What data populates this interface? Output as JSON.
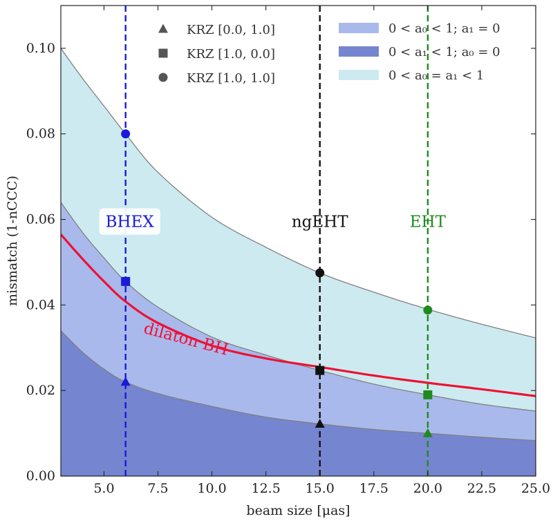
{
  "chart_data": {
    "type": "area",
    "xlabel": "beam size [μas]",
    "ylabel": "mismatch (1-nCCC)",
    "xlim": [
      3.0,
      25.0
    ],
    "ylim": [
      0.0,
      0.11
    ],
    "xticks": [
      5.0,
      7.5,
      10.0,
      12.5,
      15.0,
      17.5,
      20.0,
      22.5,
      25.0
    ],
    "xtick_labels": [
      "5.0",
      "7.5",
      "10.0",
      "12.5",
      "15.0",
      "17.5",
      "20.0",
      "22.5",
      "25.0"
    ],
    "yticks": [
      0.0,
      0.02,
      0.04,
      0.06,
      0.08,
      0.1
    ],
    "ytick_labels": [
      "0.00",
      "0.02",
      "0.04",
      "0.06",
      "0.08",
      "0.10"
    ],
    "colors": {
      "band_a0": "#a9b9ec",
      "band_a1": "#7585cf",
      "band_equal": "#cdeaf0",
      "dilaton": "#ee1133",
      "bhex": "#1a1ad8",
      "ngeht": "#111111",
      "eht": "#1f8a1f",
      "boundary": "#808080"
    },
    "bands": [
      {
        "name": "0 < a_1 < 1; a_0 = 0",
        "color_key": "band_a1",
        "lower": 0.0,
        "upper_curve": "krz_0_1"
      },
      {
        "name": "0 < a_0 < 1; a_1 = 0",
        "color_key": "band_a0",
        "lower_curve": "krz_0_1",
        "upper_curve": "krz_1_0"
      },
      {
        "name": "0 < a_0 = a_1 < 1",
        "color_key": "band_equal",
        "lower_curve": "krz_1_0",
        "upper_curve": "krz_1_1"
      }
    ],
    "curves": {
      "x": [
        3.0,
        4.0,
        5.0,
        6.0,
        7.5,
        10.0,
        12.5,
        15.0,
        17.5,
        20.0,
        22.5,
        25.0
      ],
      "krz_1_1": [
        0.1,
        0.093,
        0.0865,
        0.08,
        0.071,
        0.0605,
        0.0535,
        0.0475,
        0.043,
        0.039,
        0.0355,
        0.0323
      ],
      "krz_1_0": [
        0.064,
        0.057,
        0.051,
        0.0455,
        0.0395,
        0.0325,
        0.0283,
        0.0247,
        0.0215,
        0.019,
        0.0168,
        0.0152
      ],
      "krz_0_1": [
        0.034,
        0.029,
        0.025,
        0.022,
        0.0193,
        0.0163,
        0.0138,
        0.0122,
        0.0109,
        0.01,
        0.0091,
        0.0083
      ],
      "dilaton": [
        0.0565,
        0.0508,
        0.0455,
        0.0408,
        0.0358,
        0.0305,
        0.0275,
        0.0255,
        0.0235,
        0.0218,
        0.0203,
        0.0187
      ]
    },
    "curve_labels": {
      "dilaton": "dilaton BH"
    },
    "observatories": [
      {
        "name": "BHEX",
        "beam": 6.0,
        "color_key": "bhex",
        "points": {
          "triangle": 0.022,
          "square": 0.0455,
          "circle": 0.08
        }
      },
      {
        "name": "ngEHT",
        "beam": 15.0,
        "color_key": "ngeht",
        "points": {
          "triangle": 0.0122,
          "square": 0.0247,
          "circle": 0.0475
        }
      },
      {
        "name": "EHT",
        "beam": 20.0,
        "color_key": "eht",
        "points": {
          "triangle": 0.01,
          "square": 0.019,
          "circle": 0.0388
        }
      }
    ],
    "legend_markers": [
      {
        "marker": "triangle",
        "label": "KRZ [0.0, 1.0]"
      },
      {
        "marker": "square",
        "label": "KRZ [1.0, 0.0]"
      },
      {
        "marker": "circle",
        "label": "KRZ [1.0, 1.0]"
      }
    ],
    "legend_bands": [
      {
        "color_key": "band_a0",
        "label": "0 < a₀ < 1; a₁ = 0"
      },
      {
        "color_key": "band_a1",
        "label": "0 < a₁ < 1; a₀ = 0"
      },
      {
        "color_key": "band_equal",
        "label": "0 < a₀ = a₁ < 1"
      }
    ]
  }
}
